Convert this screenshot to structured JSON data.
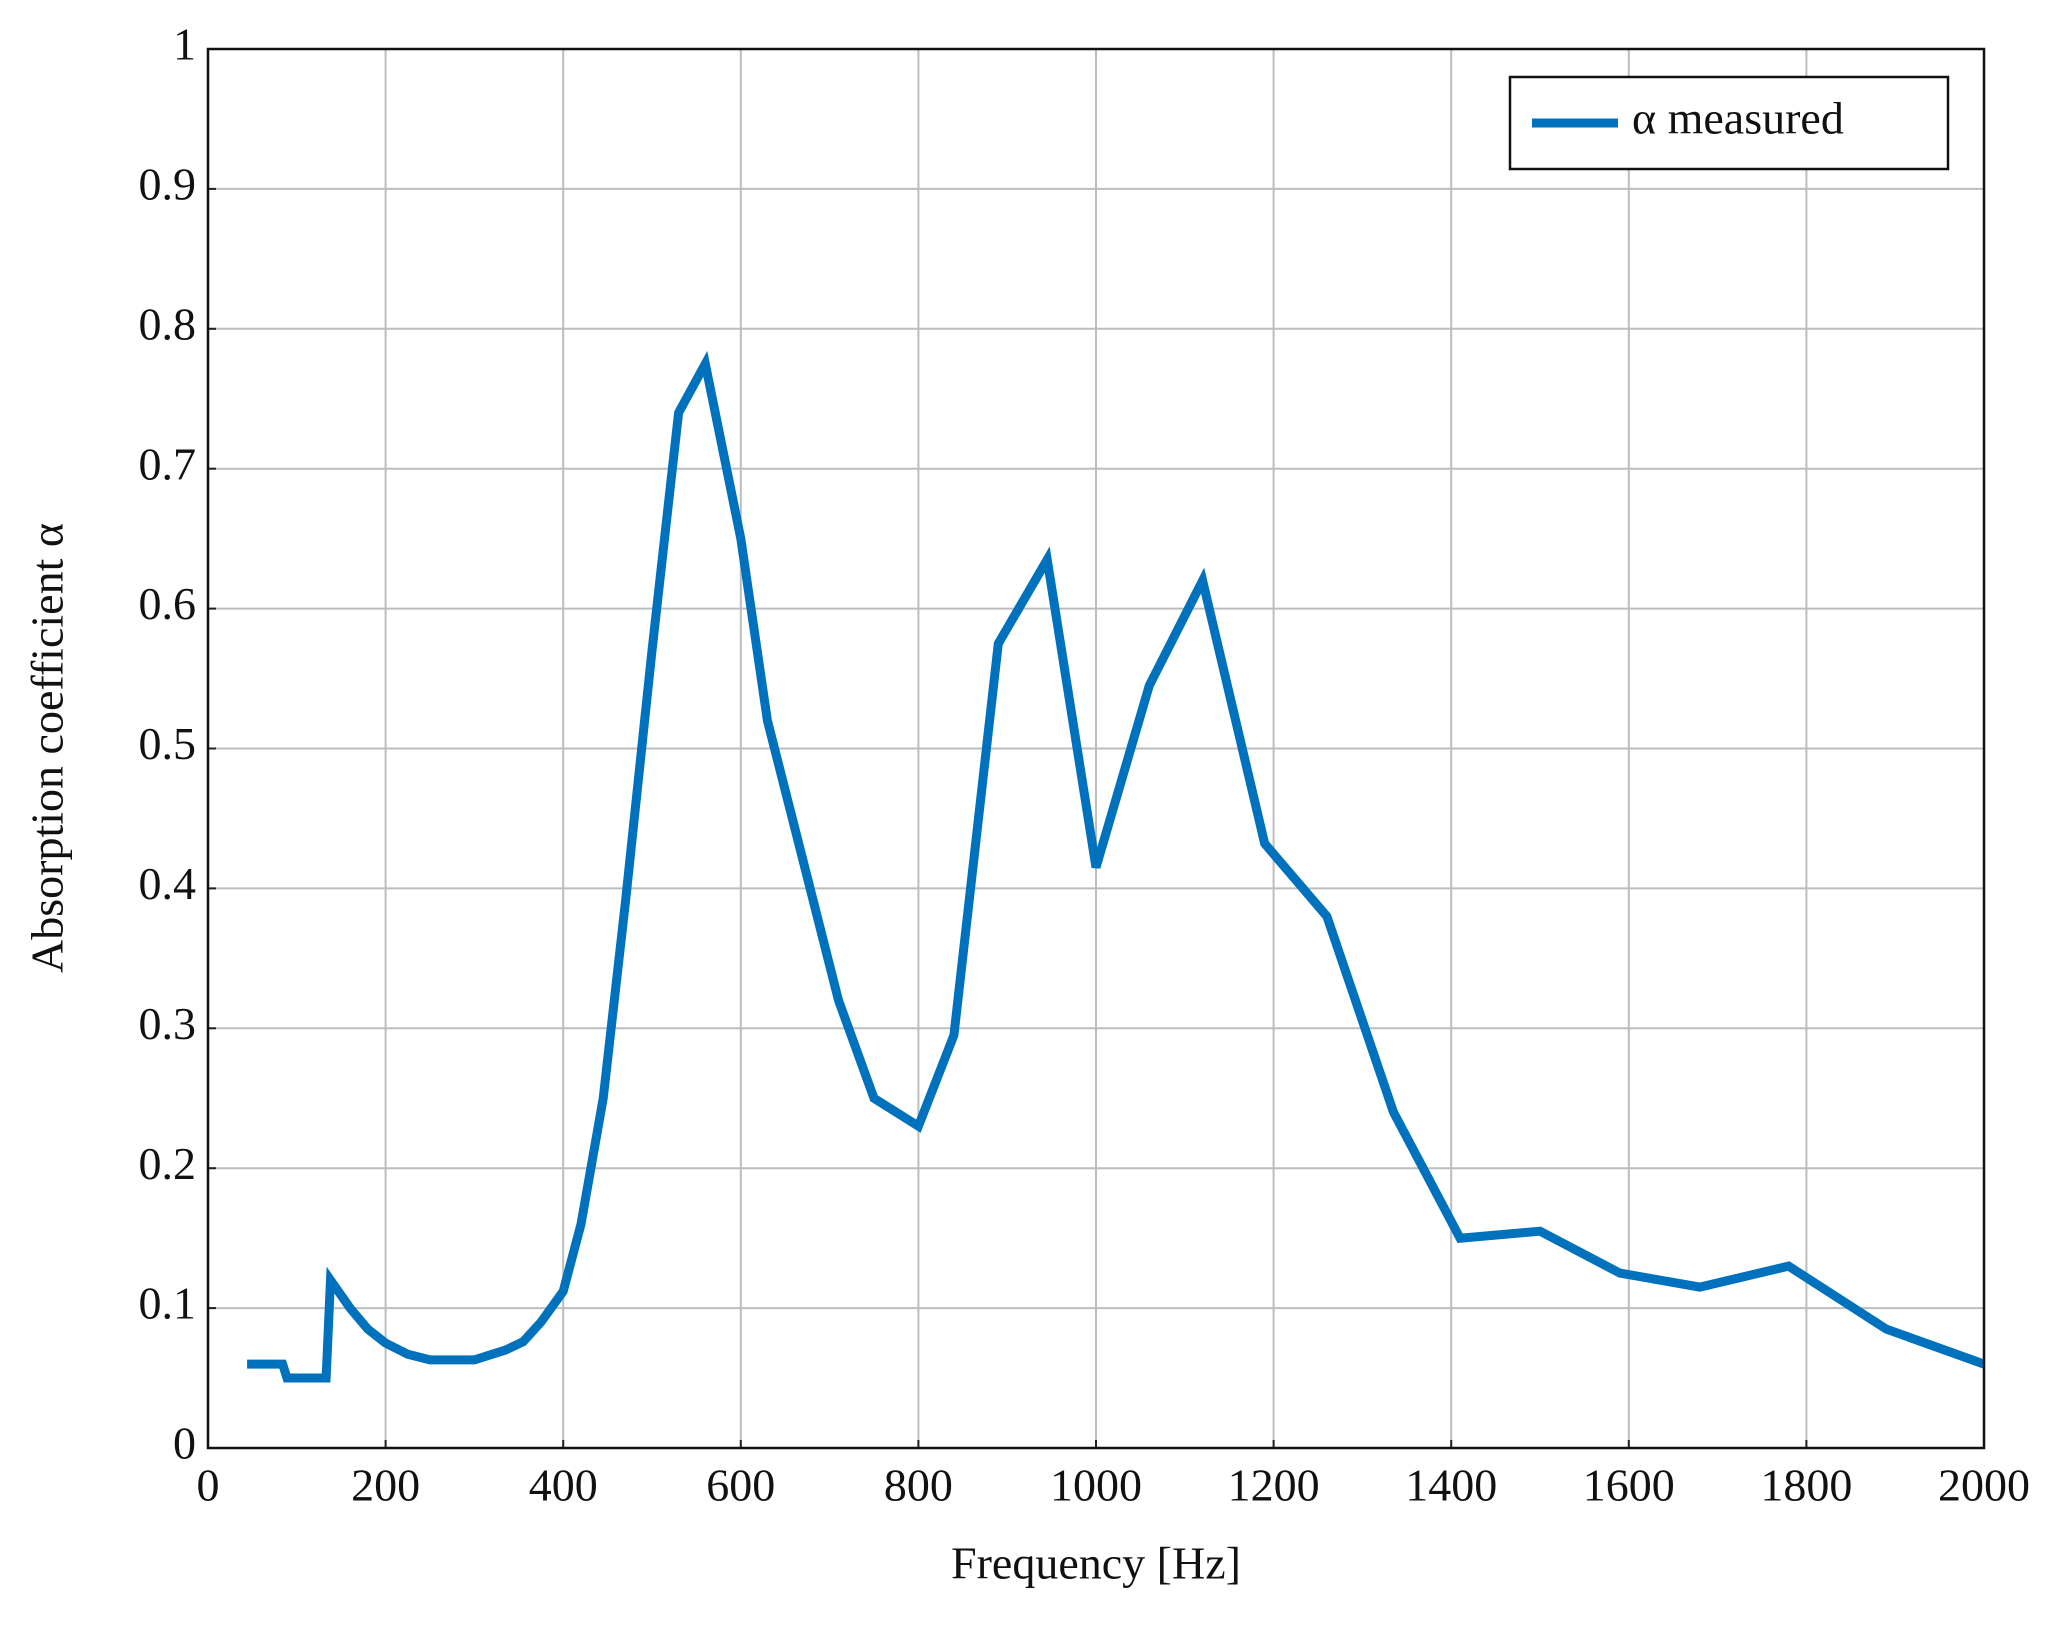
{
  "chart_data": {
    "type": "line",
    "x_label": "Frequency [Hz]",
    "y_label": "Absorption coefficient α",
    "xlim": [
      0,
      2000
    ],
    "ylim": [
      0,
      1
    ],
    "xticks": [
      0,
      200,
      400,
      600,
      800,
      1000,
      1200,
      1400,
      1600,
      1800,
      2000
    ],
    "yticks": [
      0,
      0.1,
      0.2,
      0.3,
      0.4,
      0.5,
      0.6,
      0.7,
      0.8,
      0.9,
      1
    ],
    "grid": true,
    "legend_position": "upper right",
    "x": [
      44,
      84,
      89,
      133,
      138,
      160,
      180,
      200,
      225,
      250,
      280,
      300,
      315,
      335,
      355,
      375,
      400,
      420,
      445,
      470,
      500,
      530,
      560,
      600,
      630,
      670,
      710,
      750,
      800,
      840,
      890,
      945,
      1000,
      1060,
      1120,
      1190,
      1260,
      1335,
      1410,
      1500,
      1590,
      1680,
      1780,
      1890,
      2000
    ],
    "series": [
      {
        "name": "α measured",
        "color": "#0072bd",
        "values": [
          0.06,
          0.06,
          0.05,
          0.05,
          0.12,
          0.1,
          0.085,
          0.075,
          0.067,
          0.063,
          0.063,
          0.063,
          0.066,
          0.07,
          0.076,
          0.09,
          0.112,
          0.16,
          0.25,
          0.39,
          0.57,
          0.74,
          0.775,
          0.65,
          0.52,
          0.42,
          0.32,
          0.25,
          0.23,
          0.295,
          0.575,
          0.635,
          0.415,
          0.545,
          0.62,
          0.432,
          0.38,
          0.24,
          0.15,
          0.155,
          0.125,
          0.115,
          0.13,
          0.085,
          0.06
        ]
      }
    ]
  }
}
